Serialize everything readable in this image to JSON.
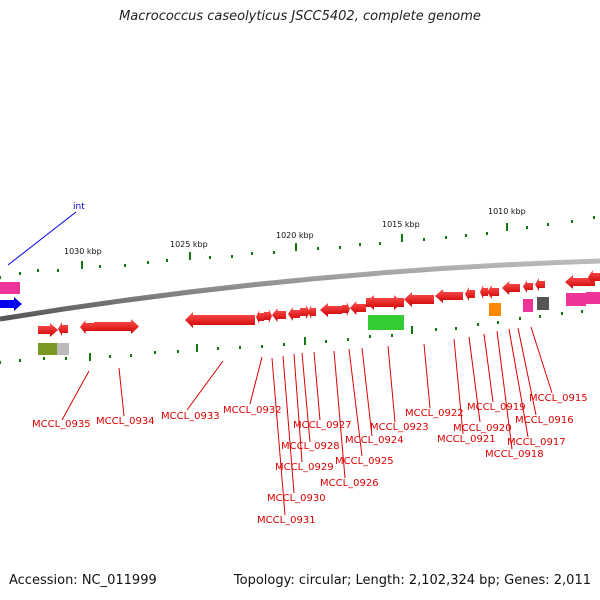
{
  "title": "Macrococcus caseolyticus JSCC5402, complete genome",
  "footer": {
    "accession": "Accession: NC_011999",
    "topology": "Topology: circular; Length: 2,102,324 bp; Genes: 2,011"
  },
  "feature_label": "int",
  "kbp_markers": [
    "1030 kbp",
    "1025 kbp",
    "1020 kbp",
    "1015 kbp",
    "1010 kbp"
  ],
  "genes": [
    "MCCL_0935",
    "MCCL_0934",
    "MCCL_0933",
    "MCCL_0932",
    "MCCL_0931",
    "MCCL_0930",
    "MCCL_0929",
    "MCCL_0928",
    "MCCL_0927",
    "MCCL_0926",
    "MCCL_0925",
    "MCCL_0924",
    "MCCL_0923",
    "MCCL_0922",
    "MCCL_0921",
    "MCCL_0920",
    "MCCL_0919",
    "MCCL_0918",
    "MCCL_0917",
    "MCCL_0916",
    "MCCL_0915"
  ],
  "colors": {
    "gene": "#ee0000",
    "rna": "#33cc33",
    "backbone": "#888888",
    "tick": "#117711",
    "int_feature": "#0000ee",
    "pink_feature": "#ee3399"
  }
}
